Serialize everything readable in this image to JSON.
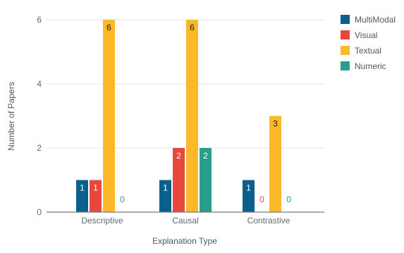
{
  "chart_data": {
    "type": "bar",
    "title": "",
    "xlabel": "Explanation Type",
    "ylabel": "Number of Papers",
    "categories": [
      "Descriptive",
      "Causal",
      "Contrastive"
    ],
    "ylim": [
      0,
      6
    ],
    "yticks": [
      0,
      2,
      4,
      6
    ],
    "grid": true,
    "legend_position": "right",
    "series": [
      {
        "name": "MultiModal",
        "color": "#0b5f8a",
        "values": [
          1,
          1,
          1
        ]
      },
      {
        "name": "Visual",
        "color": "#e8473b",
        "values": [
          1,
          2,
          0
        ]
      },
      {
        "name": "Textual",
        "color": "#fbb829",
        "values": [
          6,
          6,
          3
        ]
      },
      {
        "name": "Numeric",
        "color": "#2a9d8f",
        "values": [
          0,
          2,
          0
        ]
      }
    ]
  }
}
